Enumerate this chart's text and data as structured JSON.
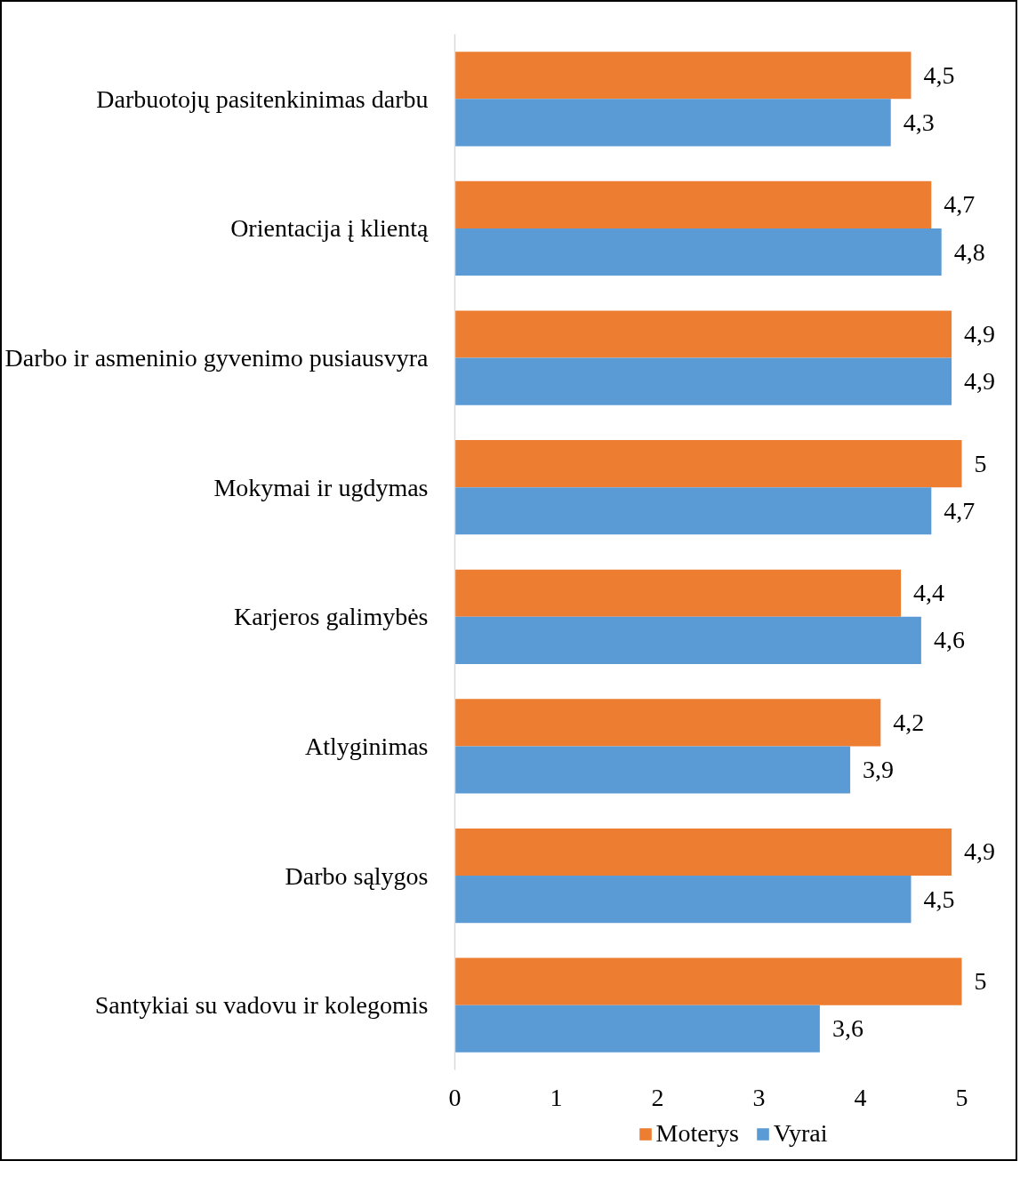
{
  "chart_data": {
    "type": "bar",
    "orientation": "horizontal",
    "categories": [
      "Darbuotojų pasitenkinimas darbu",
      "Orientacija į klientą",
      "Darbo ir asmeninio gyvenimo pusiausvyra",
      "Mokymai ir ugdymas",
      "Karjeros galimybės",
      "Atlyginimas",
      "Darbo sąlygos",
      "Santykiai su vadovu ir kolegomis"
    ],
    "series": [
      {
        "name": "Moterys",
        "color": "#ed7d31",
        "values": [
          4.5,
          4.7,
          4.9,
          5,
          4.4,
          4.2,
          4.9,
          5
        ],
        "value_labels": [
          "4,5",
          "4,7",
          "4,9",
          "5",
          "4,4",
          "4,2",
          "4,9",
          "5"
        ]
      },
      {
        "name": "Vyrai",
        "color": "#5b9bd5",
        "values": [
          4.3,
          4.8,
          4.9,
          4.7,
          4.6,
          3.9,
          4.5,
          3.6
        ],
        "value_labels": [
          "4,3",
          "4,8",
          "4,9",
          "4,7",
          "4,6",
          "3,9",
          "4,5",
          "3,6"
        ]
      }
    ],
    "xlim": [
      0,
      5
    ],
    "xticks": [
      0,
      1,
      2,
      3,
      4,
      5
    ],
    "grid": false,
    "legend": "bottom"
  }
}
